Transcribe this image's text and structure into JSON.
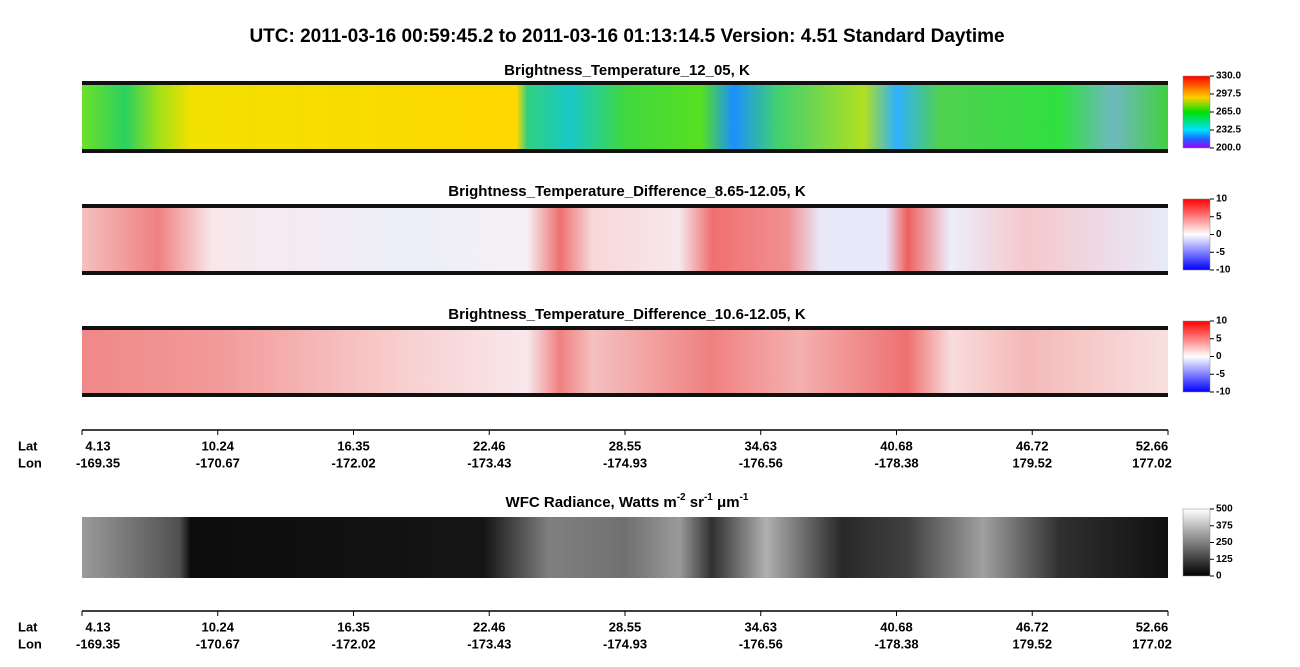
{
  "header": {
    "title": "UTC:  2011-03-16   00:59:45.2  to  2011-03-16   01:13:14.5    Version: 4.51  Standard Daytime"
  },
  "panels": [
    {
      "title_parts": [
        "Brightness_Temperature_12_05, K"
      ],
      "colorbar_ticks": [
        "330.0",
        "297.5",
        "265.0",
        "232.5",
        "200.0"
      ]
    },
    {
      "title_parts": [
        "Brightness_Temperature_Difference_8.65-12.05, K"
      ],
      "colorbar_ticks": [
        "10",
        "5",
        "0",
        "-5",
        "-10"
      ]
    },
    {
      "title_parts": [
        "Brightness_Temperature_Difference_10.6-12.05, K"
      ],
      "colorbar_ticks": [
        "10",
        "5",
        "0",
        "-5",
        "-10"
      ]
    },
    {
      "title_parts": [
        "WFC Radiance, Watts m",
        "-2",
        " sr",
        "-1",
        " μm",
        "-1"
      ],
      "colorbar_ticks": [
        "500",
        "375",
        "250",
        "125",
        "0"
      ]
    }
  ],
  "axis": {
    "lat_label": "Lat",
    "lon_label": "Lon",
    "ticks": [
      {
        "lat": "4.13",
        "lon": "-169.35"
      },
      {
        "lat": "10.24",
        "lon": "-170.67"
      },
      {
        "lat": "16.35",
        "lon": "-172.02"
      },
      {
        "lat": "22.46",
        "lon": "-173.43"
      },
      {
        "lat": "28.55",
        "lon": "-174.93"
      },
      {
        "lat": "34.63",
        "lon": "-176.56"
      },
      {
        "lat": "40.68",
        "lon": "-178.38"
      },
      {
        "lat": "46.72",
        "lon": "179.52"
      },
      {
        "lat": "52.66",
        "lon": "177.02"
      }
    ]
  }
}
